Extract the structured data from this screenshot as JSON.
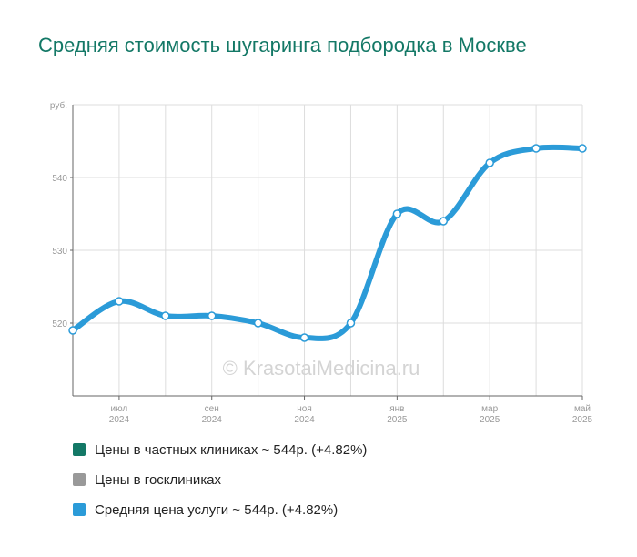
{
  "title": "Средняя стоимость шугаринга подбородка в Москве",
  "watermark": "© KrasotaiMedicina.ru",
  "chart_data": {
    "type": "line",
    "ylabel": "руб.",
    "ylim": [
      510,
      550
    ],
    "yticks": [
      520,
      530,
      540
    ],
    "grid": true,
    "x": [
      "2024-06",
      "2024-07",
      "2024-08",
      "2024-09",
      "2024-10",
      "2024-11",
      "2024-12",
      "2025-01",
      "2025-02",
      "2025-03",
      "2025-04",
      "2025-05"
    ],
    "x_ticks": [
      {
        "month": "июл",
        "year": "2024"
      },
      {
        "month": "сен",
        "year": "2024"
      },
      {
        "month": "ноя",
        "year": "2024"
      },
      {
        "month": "янв",
        "year": "2025"
      },
      {
        "month": "мар",
        "year": "2025"
      },
      {
        "month": "май",
        "year": "2025"
      }
    ],
    "series": [
      {
        "name": "Средняя цена услуги",
        "color": "#2b9bd8",
        "values": [
          519,
          523,
          521,
          521,
          520,
          518,
          520,
          535,
          534,
          542,
          544,
          544
        ]
      }
    ]
  },
  "legend": [
    {
      "label": "Цены в частных клиниках ~ 544р. (+4.82%)",
      "color": "#137866"
    },
    {
      "label": "Цены в госклиниках",
      "color": "#999999"
    },
    {
      "label": "Средняя цена услуги ~ 544р. (+4.82%)",
      "color": "#2b9bd8"
    }
  ]
}
